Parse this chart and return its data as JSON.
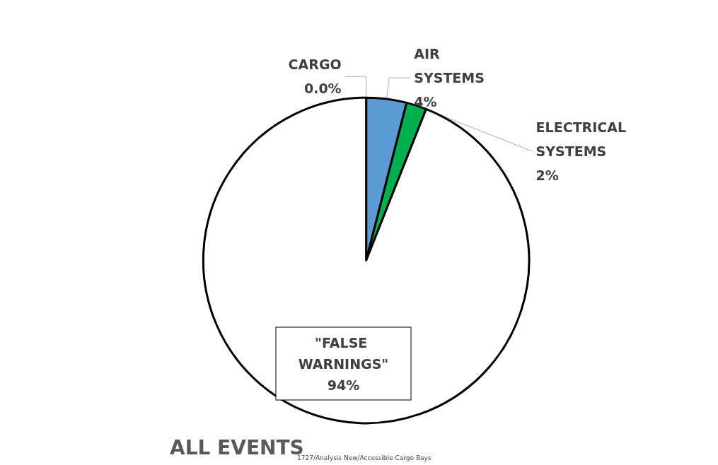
{
  "chart_data": {
    "type": "pie",
    "title": "ALL EVENTS",
    "annotations": [
      "1727/Analysis New/Accessible Cargo Bays"
    ],
    "categories": [
      "CARGO",
      "AIR SYSTEMS",
      "ELECTRICAL SYSTEMS",
      "\"FALSE WARNINGS\""
    ],
    "values": [
      0,
      4,
      2,
      94
    ],
    "value_labels": [
      "0.0%",
      "4%",
      "2%",
      "94%"
    ],
    "colors": [
      "#ffffff",
      "#5b9bd5",
      "#00b050",
      "#ffffff"
    ],
    "legend": false
  }
}
